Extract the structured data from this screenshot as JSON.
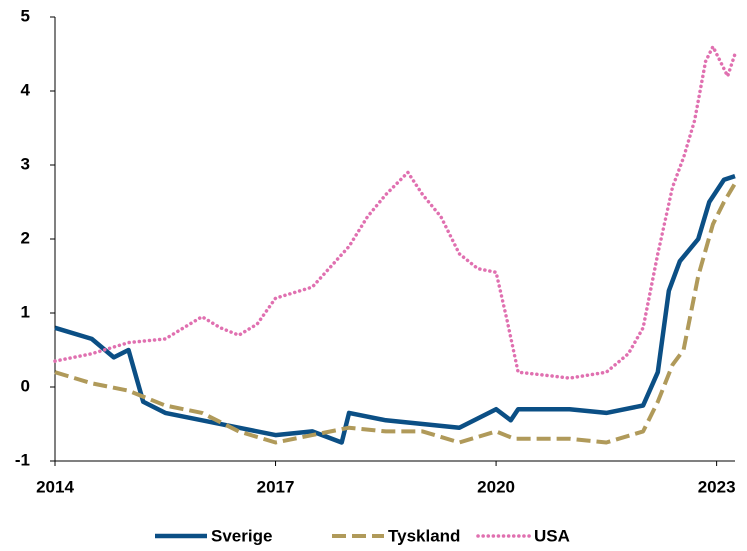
{
  "chart_data": {
    "type": "line",
    "xlim": [
      2014,
      2023.25
    ],
    "xticks": [
      2014,
      2017,
      2020,
      2023
    ],
    "ylim": [
      -1,
      5
    ],
    "yticks": [
      -1,
      0,
      1,
      2,
      3,
      4,
      5
    ],
    "grid": false,
    "legend": "bottom",
    "series": [
      {
        "name": "Sverige",
        "color": "#0b4f85",
        "style": "solid",
        "x": [
          2014,
          2014.5,
          2014.8,
          2015.0,
          2015.2,
          2015.5,
          2016,
          2016.5,
          2017,
          2017.5,
          2017.9,
          2018.0,
          2018.5,
          2019,
          2019.5,
          2020,
          2020.2,
          2020.3,
          2021,
          2021.5,
          2022,
          2022.2,
          2022.35,
          2022.5,
          2022.75,
          2022.9,
          2023.1,
          2023.25
        ],
        "values": [
          0.8,
          0.65,
          0.4,
          0.5,
          -0.2,
          -0.35,
          -0.45,
          -0.55,
          -0.65,
          -0.6,
          -0.75,
          -0.35,
          -0.45,
          -0.5,
          -0.55,
          -0.3,
          -0.45,
          -0.3,
          -0.3,
          -0.35,
          -0.25,
          0.2,
          1.3,
          1.7,
          2.0,
          2.5,
          2.8,
          2.85
        ]
      },
      {
        "name": "Tyskland",
        "color": "#b09a5a",
        "style": "dashed",
        "x": [
          2014,
          2014.5,
          2015.0,
          2015.5,
          2016,
          2016.5,
          2017,
          2017.5,
          2018,
          2018.5,
          2019,
          2019.5,
          2020,
          2020.25,
          2021,
          2021.5,
          2022,
          2022.2,
          2022.4,
          2022.55,
          2022.75,
          2022.95,
          2023.1,
          2023.25
        ],
        "values": [
          0.2,
          0.05,
          -0.05,
          -0.25,
          -0.35,
          -0.6,
          -0.75,
          -0.65,
          -0.55,
          -0.6,
          -0.6,
          -0.75,
          -0.6,
          -0.7,
          -0.7,
          -0.75,
          -0.6,
          -0.2,
          0.3,
          0.5,
          1.5,
          2.2,
          2.5,
          2.75
        ]
      },
      {
        "name": "USA",
        "color": "#e070b0",
        "style": "dotted",
        "x": [
          2014,
          2014.5,
          2015.0,
          2015.5,
          2016.0,
          2016.25,
          2016.5,
          2016.75,
          2017.0,
          2017.5,
          2018.0,
          2018.25,
          2018.5,
          2018.8,
          2019.0,
          2019.25,
          2019.5,
          2019.75,
          2020.0,
          2020.15,
          2020.3,
          2020.75,
          2021.0,
          2021.5,
          2021.8,
          2022.0,
          2022.2,
          2022.4,
          2022.55,
          2022.7,
          2022.85,
          2022.95,
          2023.05,
          2023.15,
          2023.25
        ],
        "values": [
          0.35,
          0.45,
          0.6,
          0.65,
          0.95,
          0.8,
          0.7,
          0.85,
          1.2,
          1.35,
          1.9,
          2.3,
          2.6,
          2.9,
          2.6,
          2.3,
          1.8,
          1.6,
          1.55,
          0.9,
          0.2,
          0.15,
          0.12,
          0.2,
          0.45,
          0.8,
          1.8,
          2.7,
          3.1,
          3.6,
          4.4,
          4.6,
          4.4,
          4.2,
          4.5
        ]
      }
    ]
  }
}
